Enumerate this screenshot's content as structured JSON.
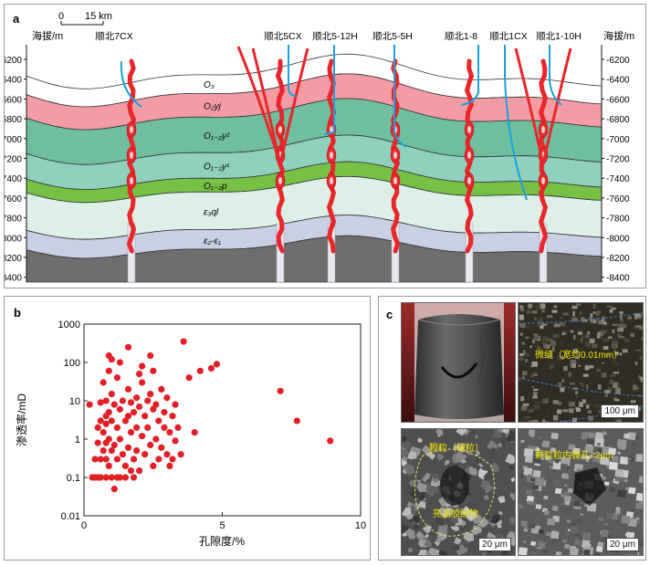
{
  "panel_a": {
    "label": "a",
    "scale_start": "0",
    "scale_text": "15 km",
    "axis_title_left": "海拔/m",
    "axis_title_right": "海拔/m",
    "depth_ticks": [
      "-6200",
      "-6400",
      "-6600",
      "-6800",
      "-7000",
      "-7200",
      "-7400",
      "-7600",
      "-7800",
      "-8000",
      "-8200",
      "-8400"
    ],
    "wells": [
      "顺北7CX",
      "顺北5CX",
      "顺北5-12H",
      "顺北5-5H",
      "顺北1-8",
      "顺北1CX",
      "顺北1-10H"
    ],
    "strata": [
      {
        "label": "O₃",
        "color": "#ffffff"
      },
      {
        "label": "O₂yj",
        "color": "#f39ca4"
      },
      {
        "label": "O₁₋₂y²",
        "color": "#6fbf9f"
      },
      {
        "label": "O₁₋₂y¹",
        "color": "#8fd1bc"
      },
      {
        "label": "O₁₋₂p",
        "color": "#77c046"
      },
      {
        "label": "ε₃ql",
        "color": "#ddf0e8"
      },
      {
        "label": "ε₂-ε₁",
        "color": "#c9cfe4"
      },
      {
        "label": "",
        "color": "#6e6e6e"
      }
    ],
    "colors": {
      "fault": "#e8262b",
      "wellbore": "#1aa0de"
    }
  },
  "panel_b": {
    "label": "b",
    "chart_data": {
      "type": "scatter",
      "xlabel": "孔隙度/%",
      "ylabel": "渗透率/mD",
      "x_ticks": [
        "0",
        "5",
        "10"
      ],
      "y_ticks": [
        "1000",
        "100",
        "10",
        "1",
        "0.1",
        "0.01"
      ],
      "xlim": [
        0,
        10
      ],
      "ylim": [
        0.01,
        1000
      ],
      "yscale": "log",
      "marker_color": "#e31f26",
      "points": [
        [
          0.2,
          8
        ],
        [
          0.3,
          0.1
        ],
        [
          0.4,
          0.3
        ],
        [
          0.4,
          0.1
        ],
        [
          0.5,
          2
        ],
        [
          0.5,
          0.8
        ],
        [
          0.5,
          0.1
        ],
        [
          0.6,
          9
        ],
        [
          0.6,
          3
        ],
        [
          0.6,
          0.3
        ],
        [
          0.6,
          0.1
        ],
        [
          0.7,
          30
        ],
        [
          0.7,
          1.5
        ],
        [
          0.7,
          0.5
        ],
        [
          0.8,
          10
        ],
        [
          0.8,
          4
        ],
        [
          0.8,
          2.5
        ],
        [
          0.8,
          0.8
        ],
        [
          0.8,
          0.3
        ],
        [
          0.8,
          0.1
        ],
        [
          0.9,
          150
        ],
        [
          0.9,
          60
        ],
        [
          0.9,
          5
        ],
        [
          0.9,
          1
        ],
        [
          0.9,
          0.2
        ],
        [
          1.0,
          120
        ],
        [
          1.0,
          15
        ],
        [
          1.0,
          3
        ],
        [
          1.0,
          0.5
        ],
        [
          1.0,
          0.1
        ],
        [
          1.1,
          0.05
        ],
        [
          1.1,
          0.7
        ],
        [
          1.1,
          8
        ],
        [
          1.2,
          40
        ],
        [
          1.2,
          2
        ],
        [
          1.2,
          0.3
        ],
        [
          1.2,
          0.1
        ],
        [
          1.3,
          100
        ],
        [
          1.3,
          6
        ],
        [
          1.3,
          1
        ],
        [
          1.3,
          0.1
        ],
        [
          1.4,
          10
        ],
        [
          1.4,
          0.4
        ],
        [
          1.5,
          3
        ],
        [
          1.5,
          0.2
        ],
        [
          1.5,
          0.1
        ],
        [
          1.6,
          250
        ],
        [
          1.6,
          20
        ],
        [
          1.6,
          4
        ],
        [
          1.6,
          0.6
        ],
        [
          1.7,
          9
        ],
        [
          1.7,
          1.5
        ],
        [
          1.7,
          0.15
        ],
        [
          1.8,
          5
        ],
        [
          1.8,
          0.3
        ],
        [
          1.8,
          0.1
        ],
        [
          1.9,
          12
        ],
        [
          1.9,
          2
        ],
        [
          1.9,
          0.5
        ],
        [
          2.0,
          50
        ],
        [
          2.0,
          7
        ],
        [
          2.0,
          0.15
        ],
        [
          2.1,
          80
        ],
        [
          2.1,
          30
        ],
        [
          2.1,
          1.2
        ],
        [
          2.2,
          4
        ],
        [
          2.2,
          0.4
        ],
        [
          2.3,
          10
        ],
        [
          2.3,
          2
        ],
        [
          2.4,
          150
        ],
        [
          2.4,
          15
        ],
        [
          2.4,
          0.7
        ],
        [
          2.5,
          6
        ],
        [
          2.5,
          0.2
        ],
        [
          2.5,
          60
        ],
        [
          2.6,
          8
        ],
        [
          2.6,
          1
        ],
        [
          2.7,
          3
        ],
        [
          2.7,
          0.3
        ],
        [
          2.8,
          20
        ],
        [
          2.8,
          0.6
        ],
        [
          2.9,
          5
        ],
        [
          2.9,
          2
        ],
        [
          3.0,
          12
        ],
        [
          3.0,
          0.4
        ],
        [
          3.1,
          1.5
        ],
        [
          3.1,
          0.2
        ],
        [
          3.2,
          4
        ],
        [
          3.2,
          0.3
        ],
        [
          3.3,
          8
        ],
        [
          3.3,
          0.9
        ],
        [
          3.4,
          2
        ],
        [
          3.5,
          0.4
        ],
        [
          3.6,
          350
        ],
        [
          3.8,
          40
        ],
        [
          4.0,
          1.5
        ],
        [
          4.2,
          60
        ],
        [
          4.6,
          70
        ],
        [
          4.8,
          90
        ],
        [
          7.1,
          18
        ],
        [
          7.7,
          3
        ],
        [
          8.9,
          0.9
        ]
      ]
    }
  },
  "panel_c": {
    "label": "c",
    "annotations": {
      "fracture": "微缝（宽约0.01mm）",
      "grain": "颗粒（球粒）",
      "cement": "亮晶胶结物",
      "intragranular": "颗粒粒内微孔<2μm"
    },
    "scale_bars": [
      "100 μm",
      "20 μm",
      "20 μm"
    ]
  }
}
